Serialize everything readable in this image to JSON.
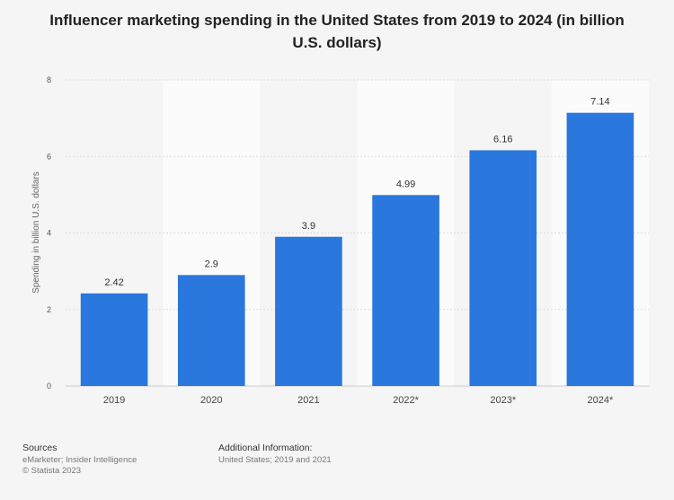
{
  "chart_data": {
    "type": "bar",
    "title": "Influencer marketing spending in the United States from 2019 to 2024 (in billion U.S. dollars)",
    "xlabel": "",
    "ylabel": "Spending in billion U.S. dollars",
    "categories": [
      "2019",
      "2020",
      "2021",
      "2022*",
      "2023*",
      "2024*"
    ],
    "values": [
      2.42,
      2.9,
      3.9,
      4.99,
      6.16,
      7.14
    ],
    "value_labels": [
      "2.42",
      "2.9",
      "3.9",
      "4.99",
      "6.16",
      "7.14"
    ],
    "ylim": [
      0,
      8
    ],
    "yticks": [
      "0",
      "2",
      "4",
      "6",
      "8"
    ],
    "grid": true,
    "bar_color": "#2a77dd"
  },
  "footer": {
    "sources_heading": "Sources",
    "sources_line1": "eMarketer; Insider Intelligence",
    "sources_line2": "© Statista 2023",
    "info_heading": "Additional Information:",
    "info_line1": "United States; 2019 and 2021"
  }
}
